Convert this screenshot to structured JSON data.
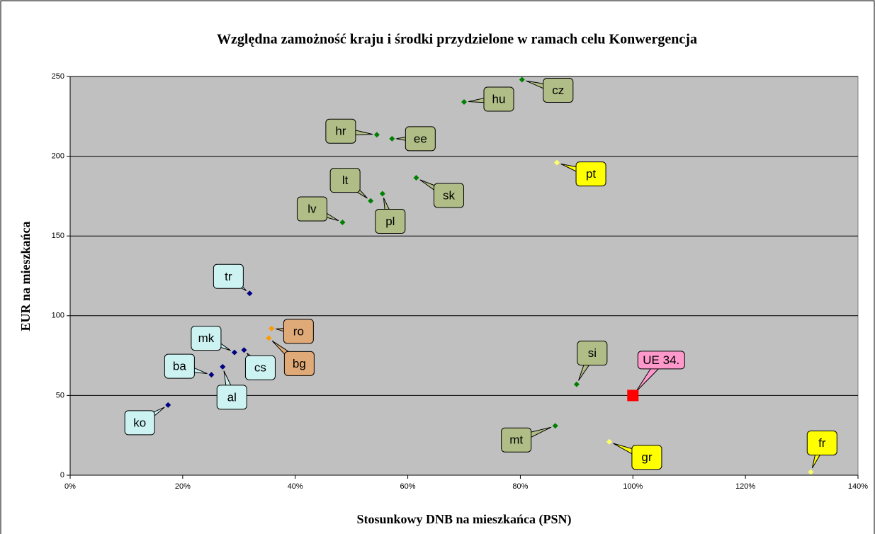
{
  "chart_data": {
    "type": "scatter",
    "title": "Względna zamożność kraju i środki przydzielone w ramach celu Konwergencja",
    "x_label": "Stosunkowy DNB na mieszkańca (PSN)",
    "y_label": "EUR na mieszkańca",
    "series": [
      {
        "color": "#008000",
        "label_color": "#b0bd86",
        "marker": "diamond",
        "labels": [
          "cz",
          "hu",
          "hr",
          "ee",
          "sk",
          "lt",
          "pl",
          "lv",
          "si",
          "mt"
        ],
        "x": [
          80.3,
          70,
          54.5,
          57.2,
          61.5,
          53.4,
          55.5,
          48.4,
          90,
          86.2
        ],
        "values": [
          248,
          234,
          213.5,
          211,
          186.5,
          172,
          176.5,
          158.5,
          57,
          31
        ]
      },
      {
        "color": "#ffff66",
        "label_color": "#ffff00",
        "marker": "diamond",
        "labels": [
          "pt",
          "gr",
          "fr"
        ],
        "x": [
          86.5,
          95.8,
          131.6
        ],
        "values": [
          196,
          21,
          2
        ]
      },
      {
        "color": "#ff9900",
        "label_color": "#e0aa78",
        "marker": "diamond",
        "labels": [
          "ro",
          "bg"
        ],
        "x": [
          35.8,
          35.3
        ],
        "values": [
          92,
          86
        ]
      },
      {
        "color": "#000080",
        "label_color": "#ccf2f2",
        "marker": "diamond",
        "labels": [
          "tr",
          "mk",
          "cs",
          "ba",
          "al",
          "ko"
        ],
        "x": [
          31.9,
          29.2,
          30.9,
          25.1,
          27.1,
          17.4
        ],
        "values": [
          114,
          77,
          78.5,
          63,
          68,
          44
        ]
      },
      {
        "color": "#ff0000",
        "label_color": "#ff99cc",
        "marker": "square",
        "labels": [
          "UE 34."
        ],
        "x": [
          100
        ],
        "values": [
          50
        ]
      }
    ],
    "xlim": [
      0,
      140
    ],
    "xticks": [
      {
        "value": 0,
        "label": "0%"
      },
      {
        "value": 20,
        "label": "20%"
      },
      {
        "value": 40,
        "label": "40%"
      },
      {
        "value": 60,
        "label": "60%"
      },
      {
        "value": 80,
        "label": "80%"
      },
      {
        "value": 100,
        "label": "100%"
      },
      {
        "value": 120,
        "label": "120%"
      },
      {
        "value": 140,
        "label": "140%"
      }
    ],
    "ylim": [
      0,
      250
    ],
    "yticks": [
      0,
      50,
      100,
      150,
      200,
      250
    ],
    "grid": true
  }
}
